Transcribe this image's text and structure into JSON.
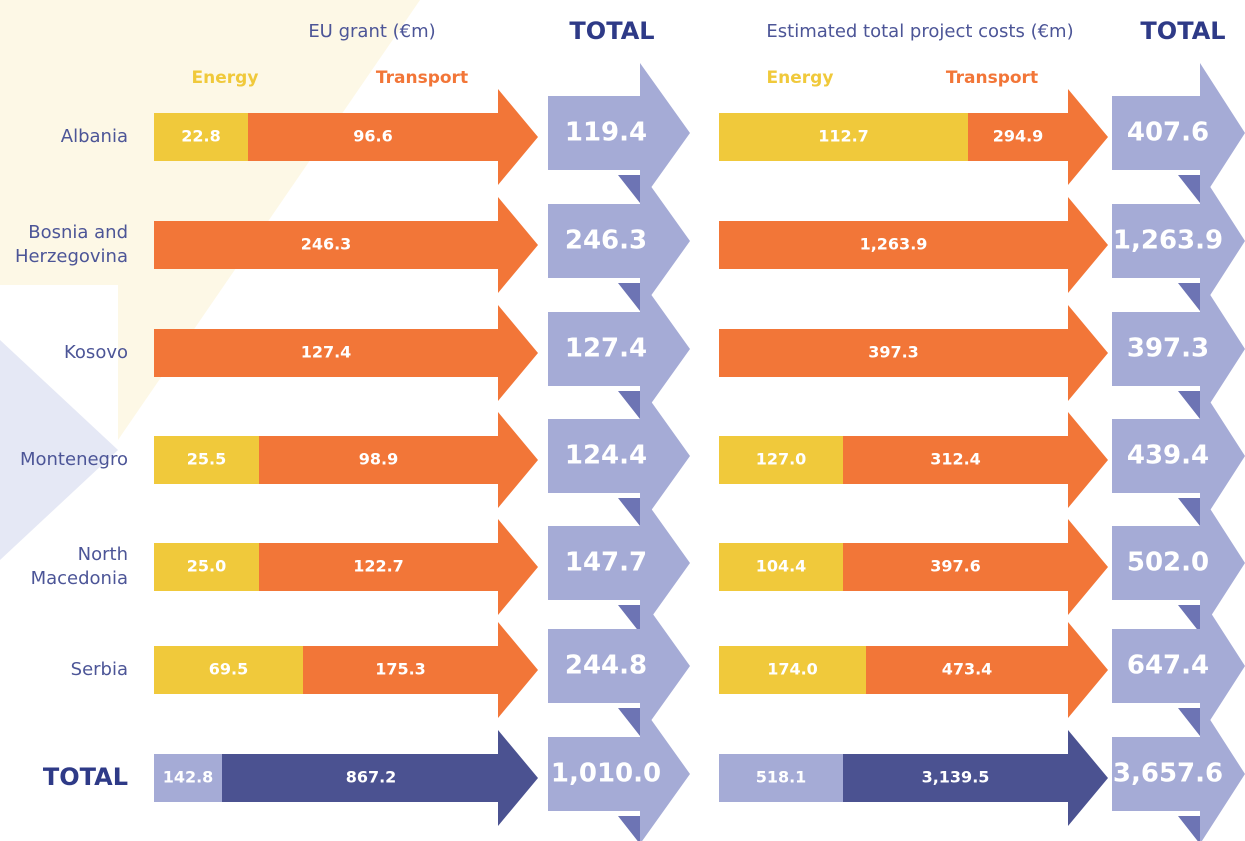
{
  "left": {
    "title": "EU grant (€m)",
    "total_heading": "TOTAL",
    "energy": "Energy",
    "transport": "Transport"
  },
  "right": {
    "title": "Estimated total project costs (€m)",
    "total_heading": "TOTAL",
    "energy": "Energy",
    "transport": "Transport"
  },
  "rows": [
    {
      "country": [
        "Albania"
      ],
      "grant": {
        "energy": "22.8",
        "transport": "96.6",
        "total": "119.4"
      },
      "cost": {
        "energy": "112.7",
        "transport": "294.9",
        "total": "407.6"
      }
    },
    {
      "country": [
        "Bosnia and",
        "Herzegovina"
      ],
      "grant": {
        "transport": "246.3",
        "total": "246.3"
      },
      "cost": {
        "transport": "1,263.9",
        "total": "1,263.9"
      }
    },
    {
      "country": [
        "Kosovo"
      ],
      "grant": {
        "transport": "127.4",
        "total": "127.4"
      },
      "cost": {
        "transport": "397.3",
        "total": "397.3"
      }
    },
    {
      "country": [
        "Montenegro"
      ],
      "grant": {
        "energy": "25.5",
        "transport": "98.9",
        "total": "124.4"
      },
      "cost": {
        "energy": "127.0",
        "transport": "312.4",
        "total": "439.4"
      }
    },
    {
      "country": [
        "North",
        "Macedonia"
      ],
      "grant": {
        "energy": "25.0",
        "transport": "122.7",
        "total": "147.7"
      },
      "cost": {
        "energy": "104.4",
        "transport": "397.6",
        "total": "502.0"
      }
    },
    {
      "country": [
        "Serbia"
      ],
      "grant": {
        "energy": "69.5",
        "transport": "175.3",
        "total": "244.8"
      },
      "cost": {
        "energy": "174.0",
        "transport": "473.4",
        "total": "647.4"
      }
    },
    {
      "country": [
        "TOTAL"
      ],
      "grant": {
        "energy": "142.8",
        "transport": "867.2",
        "total": "1,010.0"
      },
      "cost": {
        "energy": "518.1",
        "transport": "3,139.5",
        "total": "3,657.6"
      }
    }
  ]
}
